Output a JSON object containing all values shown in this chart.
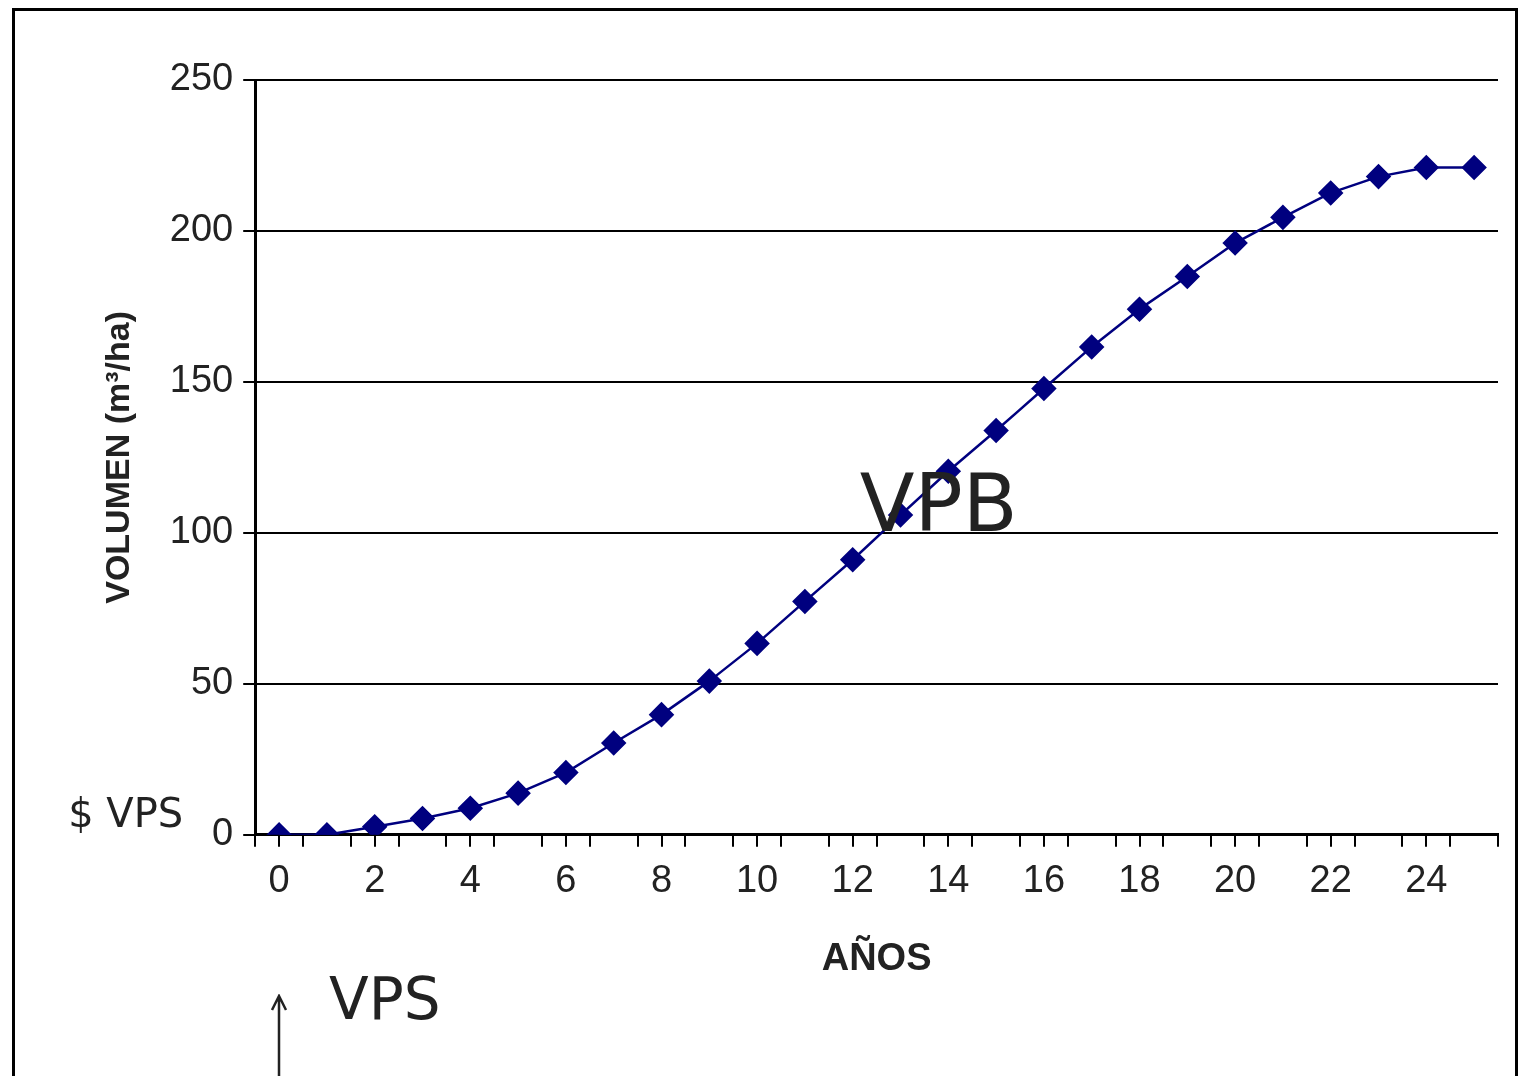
{
  "chart_data": {
    "type": "line",
    "xlabel": "AÑOS",
    "ylabel": "VOLUMEN (m³/ha)",
    "x": [
      0,
      1,
      2,
      3,
      4,
      5,
      6,
      7,
      8,
      9,
      10,
      11,
      12,
      13,
      14,
      15,
      16,
      17,
      18,
      19,
      20,
      21,
      22,
      23,
      24,
      25
    ],
    "series": [
      {
        "color": "#00007f",
        "values": [
          0,
          0,
          2.7,
          5.4,
          8.8,
          13.8,
          20.6,
          30.4,
          39.8,
          50.9,
          63.4,
          77.3,
          91.1,
          105.9,
          120.4,
          133.9,
          147.8,
          161.6,
          174.1,
          184.9,
          196,
          204.5,
          212.6,
          218,
          221,
          221
        ]
      }
    ],
    "xlim": [
      -0.5,
      25.5
    ],
    "xticks": [
      {
        "value": -0.5,
        "label": null
      },
      0,
      {
        "value": 0.5,
        "label": null
      },
      {
        "value": 1.5,
        "label": null
      },
      2,
      {
        "value": 2.5,
        "label": null
      },
      {
        "value": 3.5,
        "label": null
      },
      4,
      {
        "value": 4.5,
        "label": null
      },
      {
        "value": 5.5,
        "label": null
      },
      6,
      {
        "value": 6.5,
        "label": null
      },
      {
        "value": 7.5,
        "label": null
      },
      8,
      {
        "value": 8.5,
        "label": null
      },
      {
        "value": 9.5,
        "label": null
      },
      10,
      {
        "value": 10.5,
        "label": null
      },
      {
        "value": 11.5,
        "label": null
      },
      12,
      {
        "value": 12.5,
        "label": null
      },
      {
        "value": 13.5,
        "label": null
      },
      14,
      {
        "value": 14.5,
        "label": null
      },
      {
        "value": 15.5,
        "label": null
      },
      16,
      {
        "value": 16.5,
        "label": null
      },
      {
        "value": 17.5,
        "label": null
      },
      18,
      {
        "value": 18.5,
        "label": null
      },
      {
        "value": 19.5,
        "label": null
      },
      20,
      {
        "value": 20.5,
        "label": null
      },
      {
        "value": 21.5,
        "label": null
      },
      22,
      {
        "value": 22.5,
        "label": null
      },
      {
        "value": 23.5,
        "label": null
      },
      24,
      {
        "value": 24.5,
        "label": null
      },
      {
        "value": 25.5,
        "label": null
      }
    ],
    "ylim": [
      0,
      250
    ],
    "yticks": [
      0,
      50,
      100,
      150,
      200,
      250
    ],
    "grid": "y",
    "marker": "diamond",
    "line_style": "solid",
    "legend": false,
    "annotations": [
      "VPB",
      "$ VPS",
      "VPS"
    ]
  }
}
